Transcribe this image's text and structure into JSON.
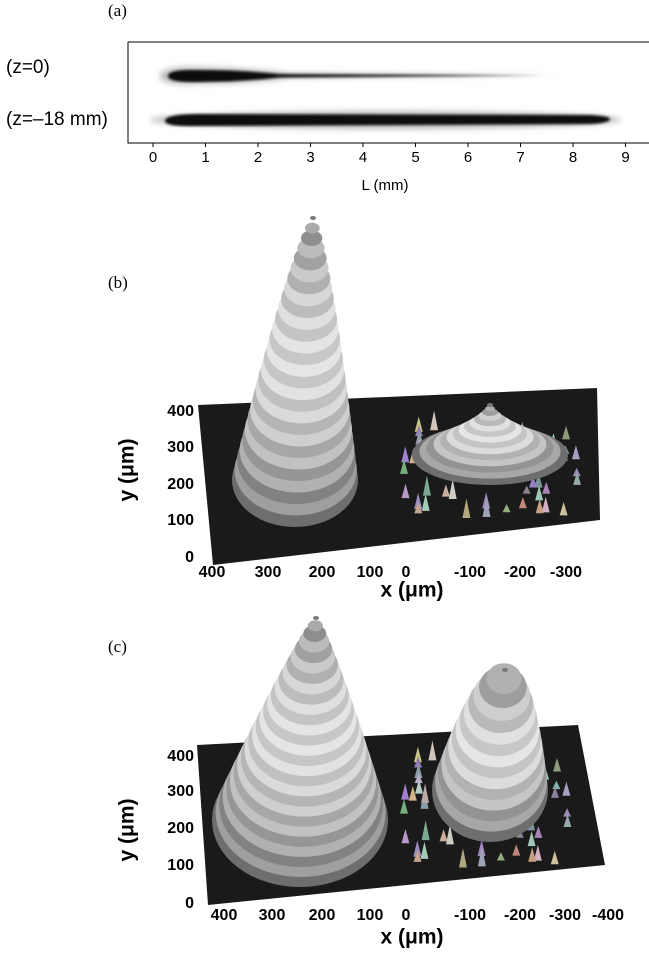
{
  "panel_a": {
    "label": "(a)",
    "rows": [
      "(z=0)",
      "(z=–18 mm)"
    ],
    "x_ticks": [
      "0",
      "1",
      "2",
      "3",
      "4",
      "5",
      "6",
      "7",
      "8",
      "9"
    ],
    "x_label": "L (mm)"
  },
  "panel_b": {
    "label": "(b)",
    "y_ticks": [
      "400",
      "300",
      "200",
      "100",
      "0"
    ],
    "y_label": "y (μm)",
    "x_ticks": [
      "400",
      "300",
      "200",
      "100",
      "0",
      "-100",
      "-200",
      "-300"
    ],
    "x_label": "x (μm)"
  },
  "panel_c": {
    "label": "(c)",
    "y_ticks": [
      "400",
      "300",
      "200",
      "100",
      "0"
    ],
    "y_label": "y (μm)",
    "x_ticks": [
      "400",
      "300",
      "200",
      "100",
      "0",
      "-100",
      "-200",
      "-300",
      "-400"
    ],
    "x_label": "x (μm)"
  }
}
